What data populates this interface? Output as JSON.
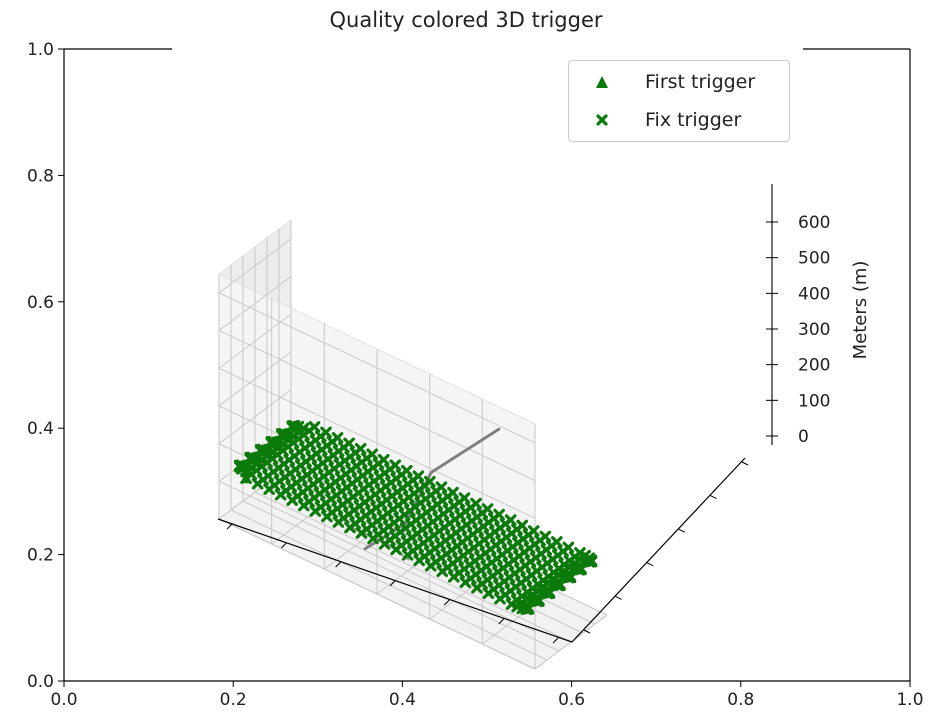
{
  "title": "Quality colored 3D trigger",
  "colors": {
    "marker": "#0b7a0b",
    "track": "#808080",
    "pane": "#f2f2f2",
    "grid": "#c8c8c8"
  },
  "legend": {
    "entries": [
      {
        "label": "First trigger",
        "marker": "triangle-icon"
      },
      {
        "label": "Fix trigger",
        "marker": "x-marker-icon"
      }
    ]
  },
  "chart_data": {
    "type": "scatter",
    "title": "Quality colored 3D trigger",
    "axes2d": {
      "xlim": [
        0.0,
        1.0
      ],
      "ylim": [
        0.0,
        1.0
      ],
      "xticks": [
        "0.0",
        "0.2",
        "0.4",
        "0.6",
        "0.8",
        "1.0"
      ],
      "yticks": [
        "0.0",
        "0.2",
        "0.4",
        "0.6",
        "0.8",
        "1.0"
      ]
    },
    "axes3d": {
      "zlabel": "Meters (m)",
      "zticks": [
        "0",
        "100",
        "200",
        "300",
        "400",
        "500",
        "600"
      ],
      "zlim": [
        0,
        650
      ],
      "grid": true
    },
    "series": [
      {
        "name": "First trigger",
        "marker": "triangle",
        "count": 1
      },
      {
        "name": "Fix trigger",
        "marker": "x",
        "lanes": 14,
        "points_per_lane": 24
      }
    ],
    "legend_position": "top-right"
  }
}
